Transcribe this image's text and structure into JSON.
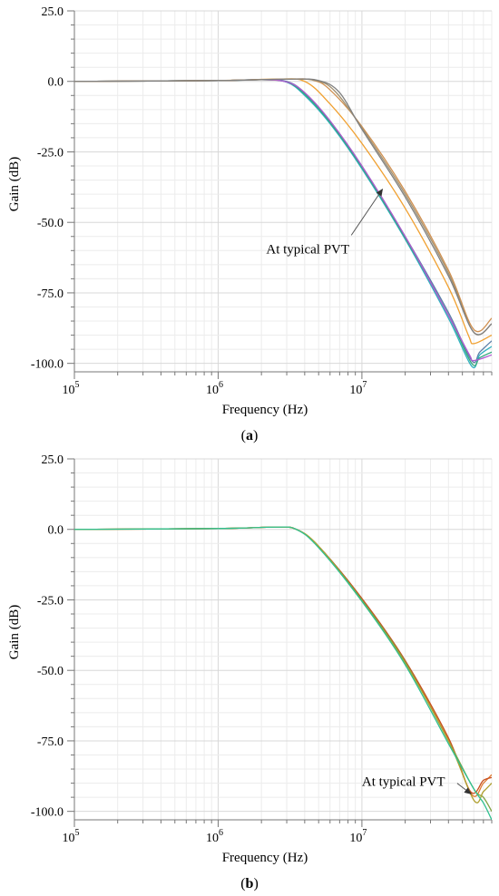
{
  "chart_data": [
    {
      "type": "line",
      "panel_label": "a",
      "xlabel": "Frequency (Hz)",
      "ylabel": "Gain (dB)",
      "x_scale": "log",
      "xlim": [
        100000,
        80000000
      ],
      "ylim": [
        -103,
        25
      ],
      "x_ticks": [
        {
          "base": "10",
          "exp": "5"
        },
        {
          "base": "10",
          "exp": "6"
        },
        {
          "base": "10",
          "exp": "7"
        }
      ],
      "y_ticks": [
        "25.0",
        "0.0",
        "-25.0",
        "-50.0",
        "-75.0",
        "-100.0"
      ],
      "y_tick_values": [
        25,
        0,
        -25,
        -50,
        -75,
        -100
      ],
      "grid": true,
      "annotation": {
        "text": "At typical PVT",
        "target": [
          14000000,
          -38
        ],
        "text_at": [
          4200000,
          -61
        ]
      },
      "series": [
        {
          "color": "#5b7fa8",
          "points": [
            [
              100000,
              0
            ],
            [
              1000000,
              0.3
            ],
            [
              2000000,
              0.6
            ],
            [
              3000000,
              0
            ],
            [
              4000000,
              -4
            ],
            [
              6000000,
              -14
            ],
            [
              10000000,
              -30
            ],
            [
              20000000,
              -55
            ],
            [
              40000000,
              -82
            ],
            [
              58000000,
              -99
            ],
            [
              66000000,
              -96
            ],
            [
              80000000,
              -92
            ]
          ]
        },
        {
          "color": "#30b0c0",
          "points": [
            [
              100000,
              0
            ],
            [
              1000000,
              0.3
            ],
            [
              2000000,
              0.6
            ],
            [
              3000000,
              -0.3
            ],
            [
              4000000,
              -5
            ],
            [
              6000000,
              -15
            ],
            [
              10000000,
              -31
            ],
            [
              20000000,
              -56
            ],
            [
              40000000,
              -84
            ],
            [
              58000000,
              -101
            ],
            [
              66000000,
              -97
            ],
            [
              80000000,
              -94
            ]
          ]
        },
        {
          "color": "#2ea87a",
          "points": [
            [
              100000,
              0
            ],
            [
              1000000,
              0.3
            ],
            [
              2000000,
              0.6
            ],
            [
              3000000,
              -0.2
            ],
            [
              4000000,
              -4.5
            ],
            [
              6000000,
              -14.5
            ],
            [
              10000000,
              -30.5
            ],
            [
              20000000,
              -55.5
            ],
            [
              40000000,
              -83
            ],
            [
              58000000,
              -100
            ],
            [
              66000000,
              -98
            ],
            [
              80000000,
              -96
            ]
          ]
        },
        {
          "color": "#b05ad0",
          "points": [
            [
              100000,
              0
            ],
            [
              1000000,
              0.3
            ],
            [
              2000000,
              0.6
            ],
            [
              3000000,
              -0.2
            ],
            [
              4000000,
              -4
            ],
            [
              6000000,
              -14
            ],
            [
              10000000,
              -30
            ],
            [
              20000000,
              -55
            ],
            [
              40000000,
              -83
            ],
            [
              56000000,
              -97
            ],
            [
              60000000,
              -99
            ],
            [
              80000000,
              -97
            ]
          ]
        },
        {
          "color": "#f0a030",
          "points": [
            [
              100000,
              0
            ],
            [
              1000000,
              0.3
            ],
            [
              2500000,
              0.8
            ],
            [
              4000000,
              0
            ],
            [
              6000000,
              -8
            ],
            [
              10000000,
              -22
            ],
            [
              20000000,
              -45
            ],
            [
              40000000,
              -73
            ],
            [
              55000000,
              -90
            ],
            [
              60000000,
              -93
            ],
            [
              80000000,
              -90
            ]
          ]
        },
        {
          "color": "#d09050",
          "points": [
            [
              100000,
              0
            ],
            [
              1000000,
              0.3
            ],
            [
              3000000,
              0.8
            ],
            [
              4500000,
              0.5
            ],
            [
              6000000,
              -3
            ],
            [
              10000000,
              -16
            ],
            [
              20000000,
              -39
            ],
            [
              40000000,
              -67
            ],
            [
              60000000,
              -88
            ],
            [
              80000000,
              -84
            ]
          ]
        },
        {
          "color": "#a09070",
          "points": [
            [
              100000,
              0
            ],
            [
              1000000,
              0.3
            ],
            [
              3000000,
              0.8
            ],
            [
              4800000,
              0.3
            ],
            [
              6500000,
              -3.5
            ],
            [
              10000000,
              -16.5
            ],
            [
              20000000,
              -40
            ],
            [
              40000000,
              -68
            ],
            [
              60000000,
              -89
            ],
            [
              80000000,
              -86
            ]
          ]
        },
        {
          "color": "#808080",
          "points": [
            [
              100000,
              0
            ],
            [
              1000000,
              0.3
            ],
            [
              3000000,
              0.8
            ],
            [
              5000000,
              0.3
            ],
            [
              7000000,
              -4
            ],
            [
              10000000,
              -17
            ],
            [
              20000000,
              -41
            ],
            [
              40000000,
              -69
            ],
            [
              60000000,
              -89
            ],
            [
              80000000,
              -86
            ]
          ]
        }
      ]
    },
    {
      "type": "line",
      "panel_label": "b",
      "xlabel": "Frequency (Hz)",
      "ylabel": "Gain (dB)",
      "x_scale": "log",
      "xlim": [
        100000,
        80000000
      ],
      "ylim": [
        -103,
        25
      ],
      "x_ticks": [
        {
          "base": "10",
          "exp": "5"
        },
        {
          "base": "10",
          "exp": "6"
        },
        {
          "base": "10",
          "exp": "7"
        }
      ],
      "y_ticks": [
        "25.0",
        "0.0",
        "-25.0",
        "-50.0",
        "-75.0",
        "-100.0"
      ],
      "y_tick_values": [
        25,
        0,
        -25,
        -50,
        -75,
        -100
      ],
      "grid": true,
      "annotation": {
        "text": "At typical PVT",
        "target": [
          58000000,
          -94
        ],
        "text_at": [
          10000000,
          -91
        ]
      },
      "series": [
        {
          "color": "#e07a30",
          "points": [
            [
              100000,
              0
            ],
            [
              1000000,
              0.3
            ],
            [
              2500000,
              0.8
            ],
            [
              3500000,
              0
            ],
            [
              5000000,
              -6
            ],
            [
              10000000,
              -25
            ],
            [
              20000000,
              -47
            ],
            [
              40000000,
              -74
            ],
            [
              58000000,
              -94
            ],
            [
              70000000,
              -90
            ],
            [
              80000000,
              -87
            ]
          ]
        },
        {
          "color": "#c85020",
          "points": [
            [
              100000,
              0
            ],
            [
              1000000,
              0.3
            ],
            [
              2500000,
              0.8
            ],
            [
              3500000,
              0
            ],
            [
              5000000,
              -6
            ],
            [
              10000000,
              -24.5
            ],
            [
              20000000,
              -46.5
            ],
            [
              40000000,
              -74
            ],
            [
              57000000,
              -93
            ],
            [
              70000000,
              -89
            ],
            [
              80000000,
              -88
            ]
          ]
        },
        {
          "color": "#80a040",
          "points": [
            [
              100000,
              0
            ],
            [
              1000000,
              0.3
            ],
            [
              2500000,
              0.8
            ],
            [
              3500000,
              0
            ],
            [
              5000000,
              -6
            ],
            [
              10000000,
              -25
            ],
            [
              20000000,
              -47
            ],
            [
              40000000,
              -75
            ],
            [
              60000000,
              -92
            ],
            [
              70000000,
              -95
            ],
            [
              80000000,
              -100
            ]
          ]
        },
        {
          "color": "#b0a030",
          "points": [
            [
              100000,
              0
            ],
            [
              1000000,
              0.3
            ],
            [
              2500000,
              0.8
            ],
            [
              3500000,
              0
            ],
            [
              5000000,
              -6
            ],
            [
              10000000,
              -25.5
            ],
            [
              20000000,
              -47.5
            ],
            [
              40000000,
              -75
            ],
            [
              60000000,
              -96
            ],
            [
              70000000,
              -93
            ],
            [
              80000000,
              -90
            ]
          ]
        },
        {
          "color": "#30c090",
          "points": [
            [
              100000,
              0
            ],
            [
              1000000,
              0.3
            ],
            [
              2500000,
              0.8
            ],
            [
              3500000,
              0
            ],
            [
              5000000,
              -6.5
            ],
            [
              10000000,
              -25.5
            ],
            [
              20000000,
              -48
            ],
            [
              40000000,
              -76
            ],
            [
              60000000,
              -92
            ],
            [
              70000000,
              -97
            ],
            [
              80000000,
              -103
            ]
          ]
        }
      ]
    }
  ]
}
